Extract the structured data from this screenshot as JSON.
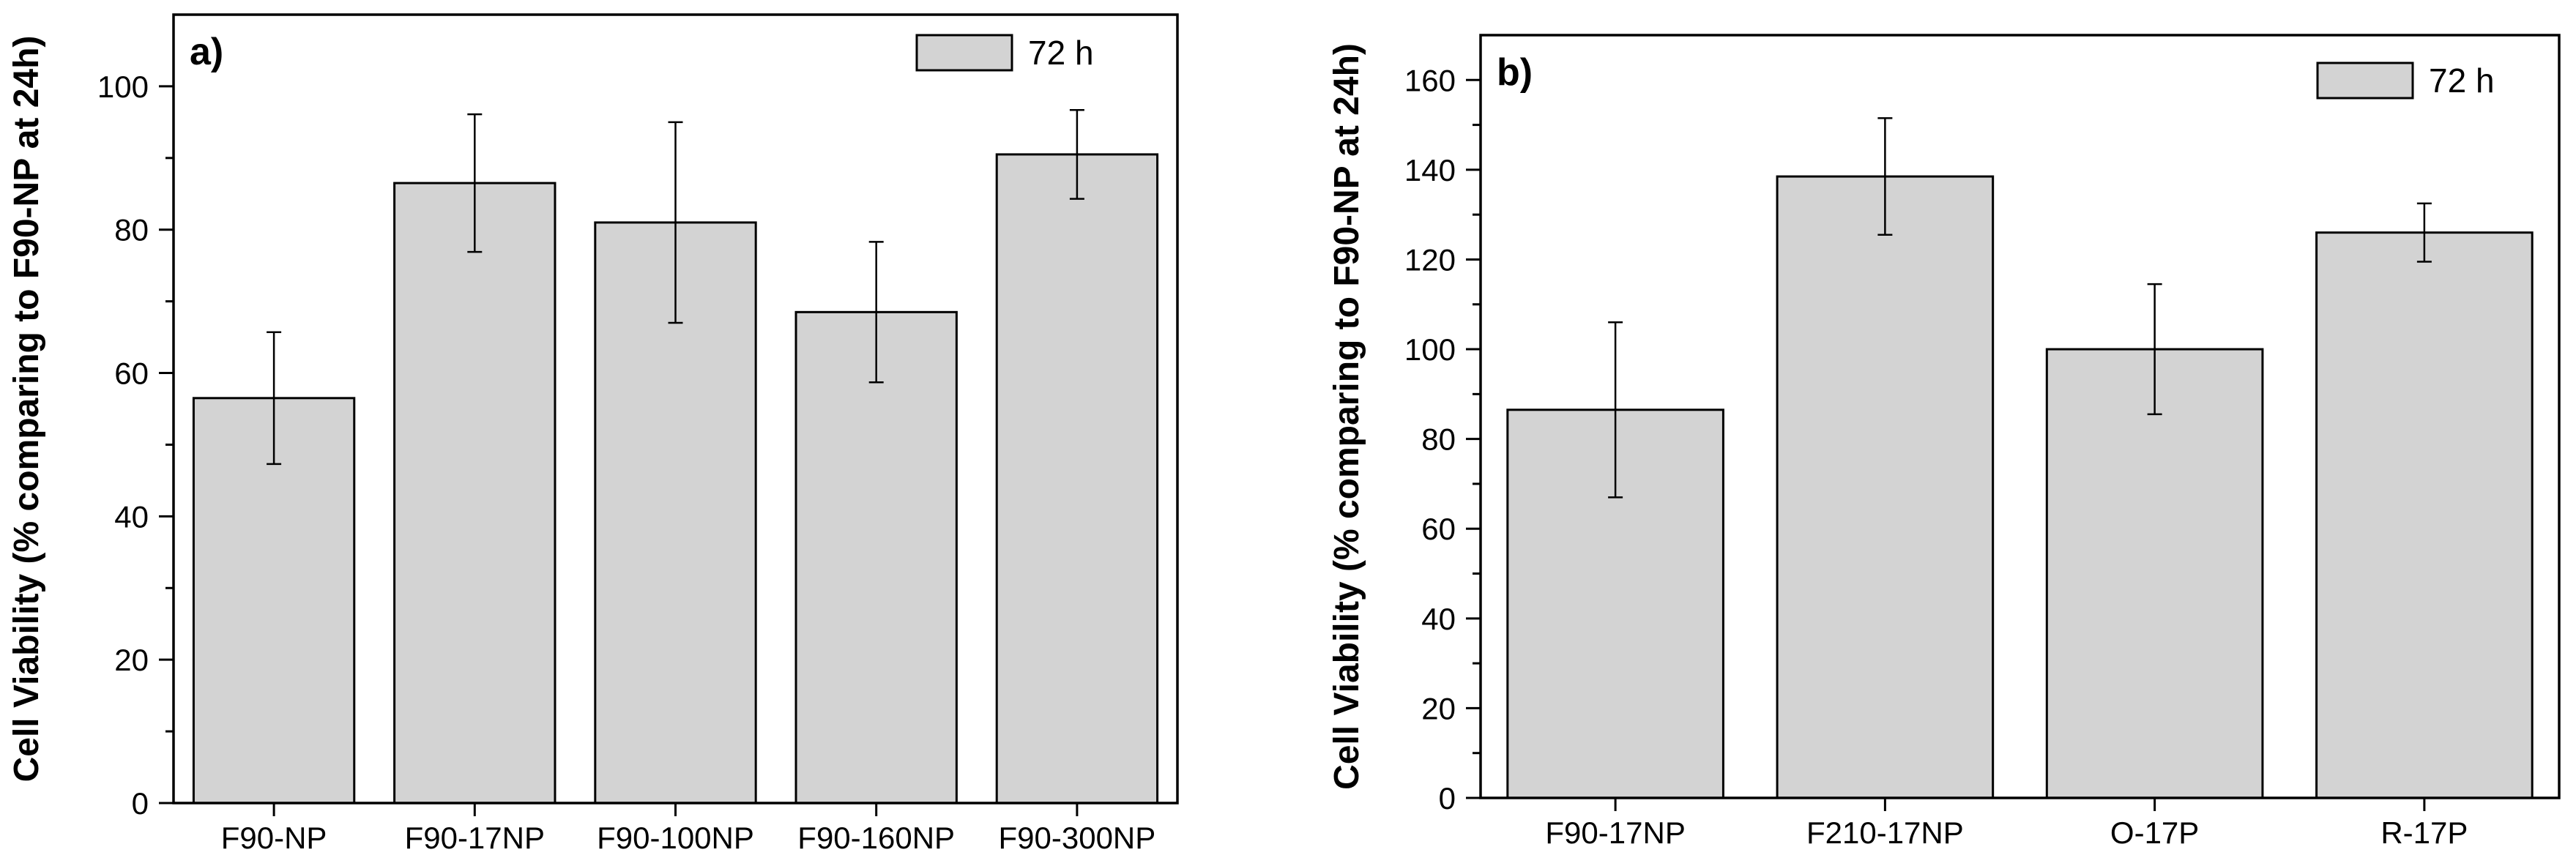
{
  "colors": {
    "bar_fill": "#d3d3d3",
    "bar_stroke": "#000000",
    "axis": "#000000",
    "background": "#ffffff"
  },
  "chart_data": [
    {
      "type": "bar",
      "panel_label": "a)",
      "title": "",
      "xlabel": "",
      "ylabel": "Cell Viability (% comparing to F90-NP at 24h)",
      "ylim": [
        0,
        110
      ],
      "yticks": [
        0,
        20,
        40,
        60,
        80,
        100
      ],
      "y_minor_step": 10,
      "grid": false,
      "legend": {
        "placement": "top-right",
        "entries": [
          "72 h"
        ]
      },
      "categories": [
        "F90-NP",
        "F90-17NP",
        "F90-100NP",
        "F90-160NP",
        "F90-300NP"
      ],
      "series": [
        {
          "name": "72 h",
          "values": [
            56.5,
            86.5,
            81,
            68.5,
            90.5
          ],
          "errors": [
            9.2,
            9.6,
            14,
            9.8,
            6.2
          ]
        }
      ]
    },
    {
      "type": "bar",
      "panel_label": "b)",
      "title": "",
      "xlabel": "",
      "ylabel": "Cell Viability (% comparing to F90-NP at 24h)",
      "ylim": [
        0,
        170
      ],
      "yticks": [
        0,
        20,
        40,
        60,
        80,
        100,
        120,
        140,
        160
      ],
      "y_minor_step": 10,
      "grid": false,
      "legend": {
        "placement": "top-right",
        "entries": [
          "72 h"
        ]
      },
      "categories": [
        "F90-17NP",
        "F210-17NP",
        "O-17P",
        "R-17P"
      ],
      "series": [
        {
          "name": "72 h",
          "values": [
            86.5,
            138.5,
            100,
            126
          ],
          "errors": [
            19.5,
            13,
            14.5,
            6.5
          ]
        }
      ]
    }
  ]
}
